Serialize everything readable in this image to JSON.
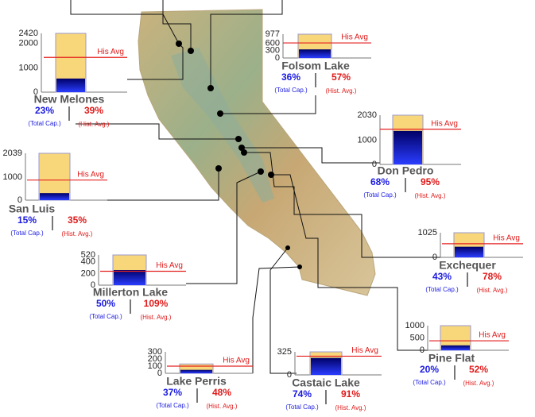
{
  "labels": {
    "avg_line": "His Avg",
    "capacity_note": "(Total Cap.)",
    "hist_note": "(Hist. Avg.)"
  },
  "reservoirs": [
    {
      "name": "New Melones",
      "ylim": [
        0,
        2420
      ],
      "yticks": [
        0,
        1000,
        2000,
        2420
      ],
      "capacity": 2420,
      "current": 560,
      "hist_avg": 1430,
      "pct_capacity": "23%",
      "pct_hist": "39%"
    },
    {
      "name": "Folsom Lake",
      "ylim": [
        0,
        977
      ],
      "yticks": [
        0,
        300,
        600,
        977
      ],
      "capacity": 977,
      "current": 352,
      "hist_avg": 617,
      "pct_capacity": "36%",
      "pct_hist": "57%"
    },
    {
      "name": "Don Pedro",
      "ylim": [
        0,
        2030
      ],
      "yticks": [
        0,
        1000,
        2030
      ],
      "capacity": 2030,
      "current": 1380,
      "hist_avg": 1453,
      "pct_capacity": "68%",
      "pct_hist": "95%"
    },
    {
      "name": "San Luis",
      "ylim": [
        0,
        2039
      ],
      "yticks": [
        0,
        1000,
        2039
      ],
      "capacity": 2039,
      "current": 306,
      "hist_avg": 874,
      "pct_capacity": "15%",
      "pct_hist": "35%"
    },
    {
      "name": "Exchequer",
      "ylim": [
        0,
        1025
      ],
      "yticks": [
        0,
        1025
      ],
      "capacity": 1025,
      "current": 441,
      "hist_avg": 565,
      "pct_capacity": "43%",
      "pct_hist": "78%"
    },
    {
      "name": "Millerton Lake",
      "ylim": [
        0,
        520
      ],
      "yticks": [
        0,
        200,
        400,
        520
      ],
      "capacity": 520,
      "current": 260,
      "hist_avg": 239,
      "pct_capacity": "50%",
      "pct_hist": "109%"
    },
    {
      "name": "Pine Flat",
      "ylim": [
        0,
        1000
      ],
      "yticks": [
        0,
        500,
        1000
      ],
      "capacity": 1000,
      "current": 200,
      "hist_avg": 385,
      "pct_capacity": "20%",
      "pct_hist": "52%"
    },
    {
      "name": "Lake Perris",
      "ylim": [
        0,
        300
      ],
      "yticks": [
        0,
        100,
        200,
        300
      ],
      "capacity": 131,
      "current": 48,
      "hist_avg": 100,
      "pct_capacity": "37%",
      "pct_hist": "48%"
    },
    {
      "name": "Castaic Lake",
      "ylim": [
        0,
        325
      ],
      "yticks": [
        0,
        325
      ],
      "capacity": 325,
      "current": 240,
      "hist_avg": 264,
      "pct_capacity": "74%",
      "pct_hist": "91%"
    }
  ]
}
